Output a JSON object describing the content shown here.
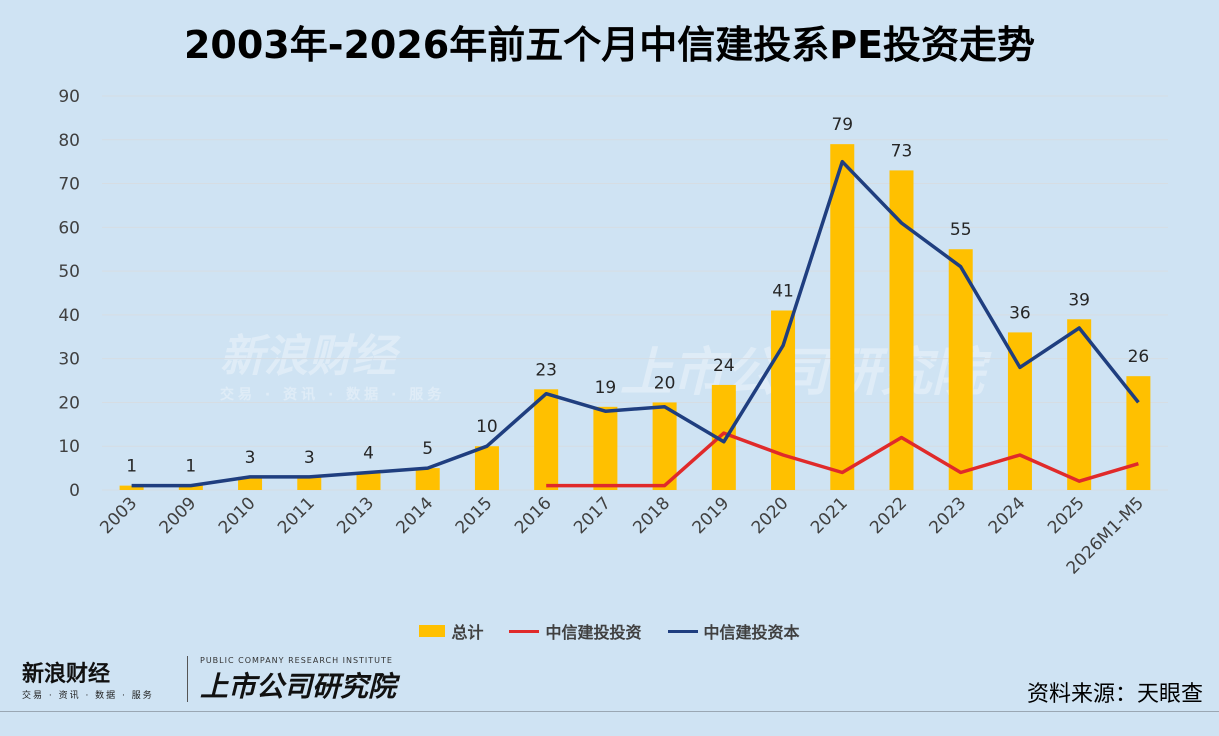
{
  "chart_data": {
    "type": "bar",
    "title": "2003年-2026年前五个月中信建投系PE投资走势",
    "categories": [
      "2003",
      "2009",
      "2010",
      "2011",
      "2013",
      "2014",
      "2015",
      "2016",
      "2017",
      "2018",
      "2019",
      "2020",
      "2021",
      "2022",
      "2023",
      "2024",
      "2025",
      "2026M1-M5"
    ],
    "ylim": [
      0,
      90
    ],
    "yticks": [
      0,
      10,
      20,
      30,
      40,
      50,
      60,
      70,
      80,
      90
    ],
    "grid": true,
    "legend_position": "bottom",
    "series": [
      {
        "name": "总计",
        "type": "bar",
        "color": "#ffc000",
        "values": [
          1,
          1,
          3,
          3,
          4,
          5,
          10,
          23,
          19,
          20,
          24,
          41,
          79,
          73,
          55,
          36,
          39,
          26
        ]
      },
      {
        "name": "中信建投投资",
        "type": "line",
        "color": "#e02a2a",
        "values": [
          null,
          null,
          null,
          null,
          null,
          null,
          null,
          1,
          1,
          1,
          13,
          8,
          4,
          12,
          4,
          8,
          2,
          6
        ]
      },
      {
        "name": "中信建投资本",
        "type": "line",
        "color": "#1f3e7f",
        "values": [
          1,
          1,
          3,
          3,
          4,
          5,
          10,
          22,
          18,
          19,
          11,
          33,
          75,
          61,
          51,
          28,
          37,
          20
        ]
      }
    ]
  },
  "source_label": "资料来源：天眼查",
  "logos": {
    "sina_cn": "新浪财经",
    "sina_sub": "交易 · 资讯 · 数据 · 服务",
    "research_en": "PUBLIC COMPANY RESEARCH INSTITUTE",
    "research_cn": "上市公司研究院"
  },
  "colors": {
    "background": "#cfe3f3"
  }
}
